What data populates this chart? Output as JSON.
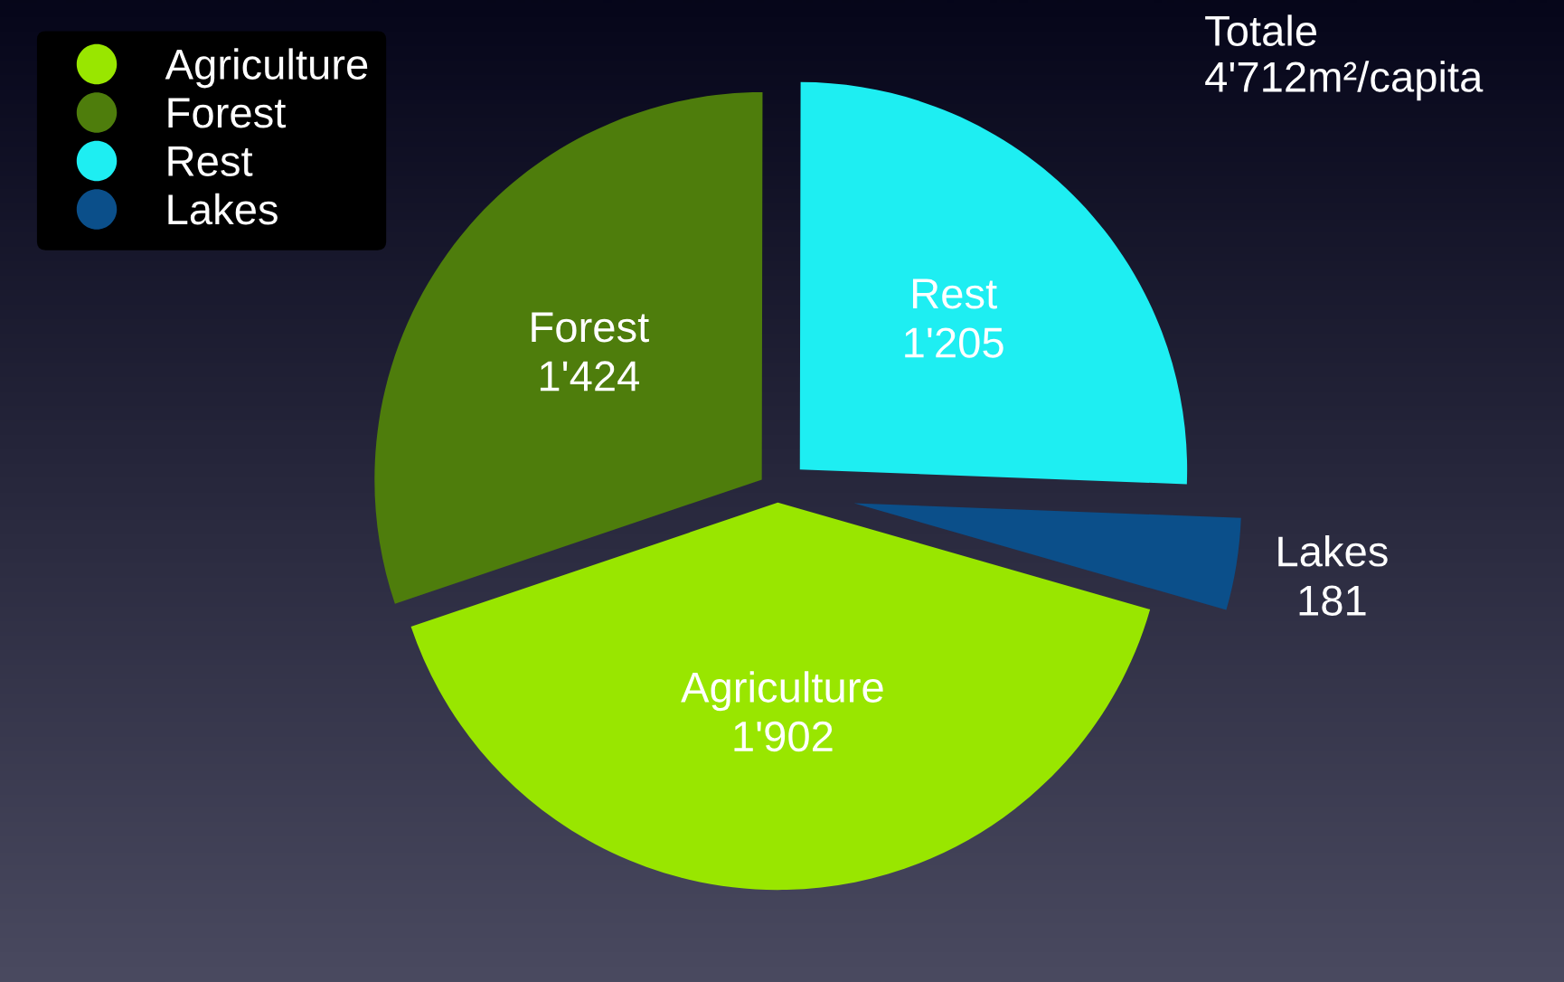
{
  "chart_data": {
    "type": "pie",
    "categories": [
      "Agriculture",
      "Forest",
      "Rest",
      "Lakes"
    ],
    "values": [
      1902,
      1424,
      1205,
      181
    ],
    "value_labels": [
      "1'902",
      "1'424",
      "1'205",
      "181"
    ],
    "colors": [
      "#99e600",
      "#4e7d0c",
      "#1eeef2",
      "#0b4f8a"
    ],
    "legend": "top left",
    "annotations": [
      "Totale\n4'712m²/capita"
    ]
  }
}
